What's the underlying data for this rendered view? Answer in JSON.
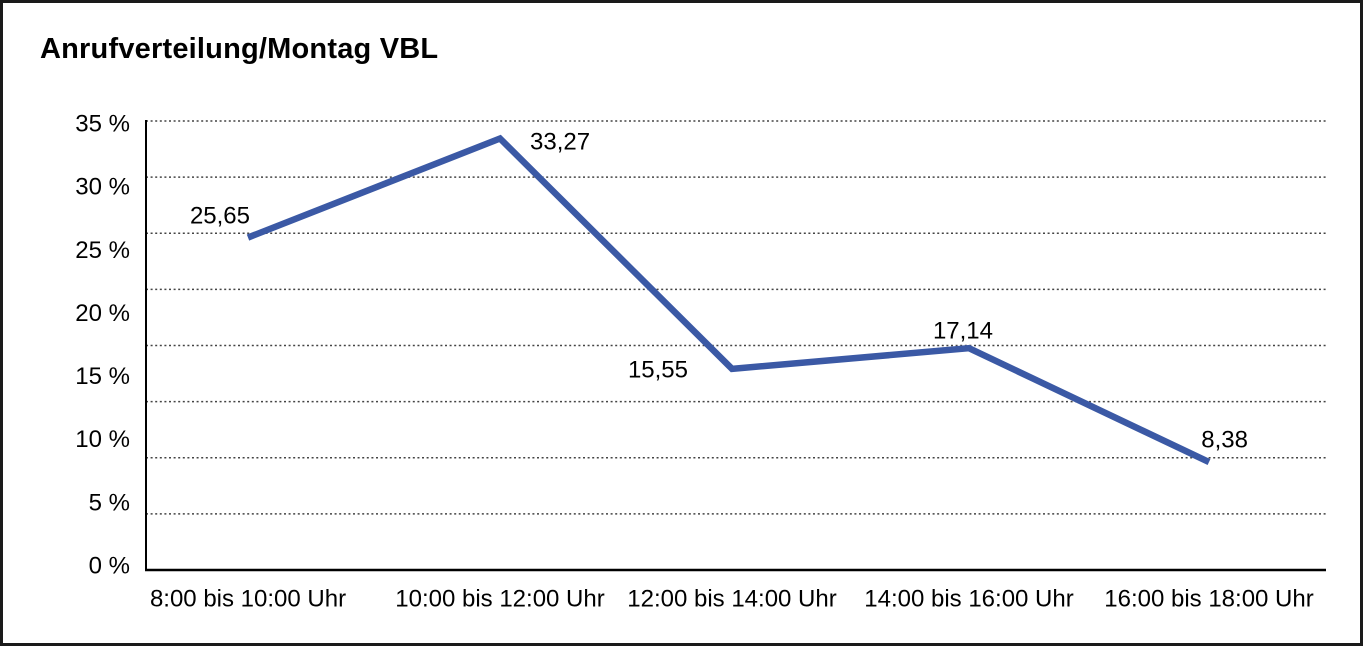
{
  "title": "Anrufverteilung/Montag VBL",
  "chart_data": {
    "type": "line",
    "title": "Anrufverteilung/Montag VBL",
    "categories": [
      "8:00 bis 10:00 Uhr",
      "10:00 bis 12:00 Uhr",
      "12:00 bis 14:00 Uhr",
      "14:00 bis 16:00 Uhr",
      "16:00 bis 18:00 Uhr"
    ],
    "series": [
      {
        "name": "Anrufverteilung Montag VBL",
        "values": [
          25.65,
          33.27,
          15.55,
          17.14,
          8.38
        ]
      }
    ],
    "value_labels": [
      "25,65",
      "33,27",
      "15,55",
      "17,14",
      "8,38"
    ],
    "ytick_labels": [
      "35 %",
      "30 %",
      "25 %",
      "20 %",
      "15 %",
      "10 %",
      "5 %",
      "0 %"
    ],
    "xlabel": "",
    "ylabel": "",
    "ylim": [
      0,
      35
    ],
    "grid": "horizontal-dotted",
    "legend": "none",
    "line_color": "#3B59A5",
    "axis_color": "#000000",
    "grid_color": "#444444"
  }
}
